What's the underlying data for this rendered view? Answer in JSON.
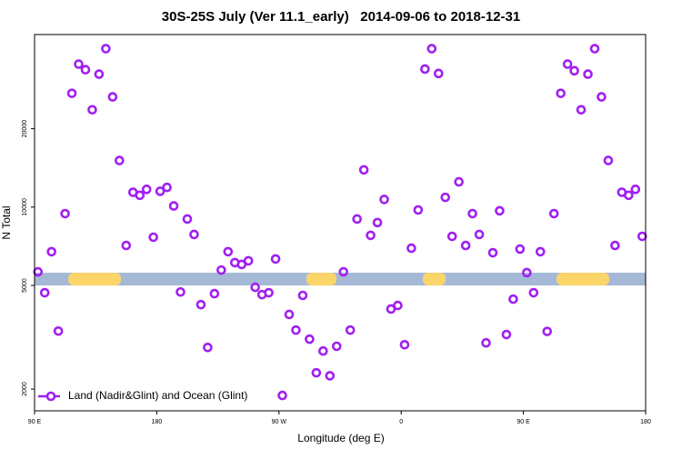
{
  "chart_data": {
    "type": "scatter",
    "title": "30S-25S July (Ver 11.1_early)   2014-09-06 to 2018-12-31",
    "x_label": "Longitude (deg E)",
    "y_label": "N Total",
    "xlim": [
      90,
      540
    ],
    "xticks": [
      {
        "value": 90,
        "label": "90 E"
      },
      180,
      {
        "value": 270,
        "label": "90 W"
      },
      {
        "value": 360,
        "label": "0"
      },
      {
        "value": 450,
        "label": "90 E"
      },
      {
        "value": 540,
        "label": "180"
      }
    ],
    "ylim": [
      1650,
      46000
    ],
    "yticks": [
      2000,
      5000,
      10000,
      20000
    ],
    "log_y": true,
    "grid": false,
    "legend": "bottom-left",
    "band": {
      "y": 5290,
      "color": "#a5b8d6",
      "highlight_color": "#fbd56a",
      "highlights": [
        [
          114.8,
          153.6
        ],
        [
          290.2,
          312.3
        ],
        [
          375.9,
          392.7
        ],
        [
          474.4,
          513.2
        ]
      ]
    },
    "series": [
      {
        "name": "Land (Nadir&Glint) and Ocean (Glint)",
        "color": "#a020f0",
        "x": [
          92.5,
          97.5,
          102.5,
          107.5,
          112.5,
          117.5,
          122.5,
          127.5,
          132.5,
          137.5,
          142.5,
          147.5,
          152.5,
          157.5,
          162.5,
          167.5,
          172.5,
          177.5,
          182.5,
          187.5,
          192.5,
          197.5,
          202.5,
          207.5,
          212.5,
          217.5,
          222.5,
          227.5,
          232.5,
          237.5,
          242.5,
          247.5,
          252.5,
          257.5,
          262.5,
          267.5,
          272.5,
          277.5,
          282.5,
          287.5,
          292.5,
          297.5,
          302.5,
          307.5,
          312.5,
          317.5,
          322.5,
          327.5,
          332.5,
          337.5,
          342.5,
          347.5,
          352.5,
          357.5,
          362.5,
          367.5,
          372.5,
          377.5,
          382.5,
          387.5,
          392.5,
          397.5,
          402.5,
          407.5,
          412.5,
          417.5,
          422.5,
          427.5,
          432.5,
          437.5,
          442.5,
          447.5,
          452.5,
          457.5,
          462.5,
          467.5,
          472.5,
          477.5,
          482.5,
          487.5,
          492.5,
          497.5,
          502.5,
          507.5,
          512.5,
          517.5,
          522.5,
          527.5,
          532.5,
          537.5
        ],
        "values": [
          5640,
          4690,
          6740,
          3340,
          9440,
          27350,
          35400,
          33700,
          23650,
          32400,
          40600,
          26500,
          15100,
          7120,
          11400,
          11100,
          11700,
          7660,
          11500,
          11900,
          10100,
          4720,
          9000,
          7850,
          4220,
          2890,
          4650,
          5730,
          6740,
          6120,
          6020,
          6220,
          4920,
          4610,
          4690,
          6320,
          1890,
          3870,
          3370,
          4580,
          3110,
          2310,
          2800,
          2250,
          2920,
          5640,
          3370,
          9000,
          13900,
          7790,
          8720,
          10700,
          4060,
          4190,
          2960,
          6950,
          9750,
          33900,
          40600,
          32600,
          10900,
          7720,
          12500,
          7120,
          9440,
          7850,
          3010,
          6680,
          9680,
          3240,
          4430,
          6900,
          5600,
          4690,
          6740,
          3330,
          9440,
          27350,
          35400,
          33400,
          23650,
          32400,
          40600,
          26500,
          15100,
          7120,
          11400,
          11100,
          11700,
          7720
        ]
      }
    ]
  }
}
